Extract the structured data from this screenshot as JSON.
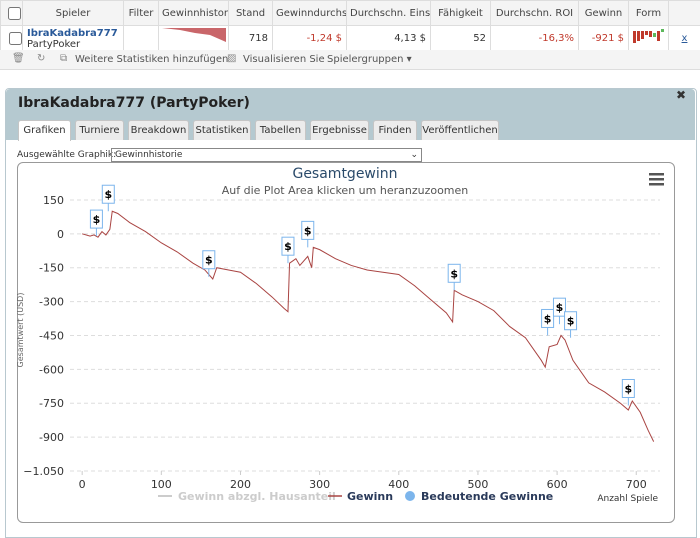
{
  "table": {
    "headers": [
      "Spieler",
      "Filter",
      "Gewinnhistori",
      "Stand",
      "Gewinndurchsc",
      "Durchschn. Eins",
      "Fähigkeit",
      "Durchschn. ROI",
      "Gewinn",
      "Form"
    ],
    "rows": [
      [
        "IbraKadabra777",
        "PartyPoker",
        "718",
        "-1,24 $",
        "4,13 $",
        "52",
        "-16,3%",
        "-921 $",
        "x"
      ]
    ]
  },
  "toolbar": [
    "Weitere Statistiken hinzufügen",
    "Visualisieren Sie",
    "Spielergruppen"
  ],
  "panel": {
    "title": "IbraKadabra777 (PartyPoker)",
    "tabs": [
      "Grafiken",
      "Turniere",
      "Breakdown",
      "Statistiken",
      "Tabellen",
      "Ergebnisse",
      "Finden",
      "Veröffentlichen"
    ],
    "select_label": "Ausgewählte Graphik:",
    "select_value": "Gewinnhistorie"
  },
  "chart_data": {
    "type": "line",
    "title": "Gesamtgewinn",
    "subtitle": "Auf die Plot Area klicken um heranzuzoomen",
    "x_label": "Anzahl Spiele",
    "y_label": "Gesamtwert (USD)",
    "xlim": [
      -28,
      730
    ],
    "xticks": [
      0,
      100,
      200,
      300,
      400,
      500,
      600,
      700
    ],
    "ylim": [
      -1050,
      194
    ],
    "yticks": [
      150,
      0,
      -150,
      -300,
      -450,
      -600,
      -750,
      -900,
      {
        "value": -1050,
        "label": "−1.050"
      }
    ],
    "grid": true,
    "series": [
      {
        "name": "Gewinn",
        "color": "#a94442",
        "x": [
          0,
          10,
          15,
          20,
          25,
          30,
          35,
          38,
          45,
          60,
          80,
          100,
          120,
          140,
          155,
          165,
          170,
          185,
          200,
          220,
          240,
          255,
          260,
          262,
          270,
          275,
          285,
          290,
          292,
          300,
          320,
          340,
          360,
          380,
          400,
          420,
          440,
          460,
          468,
          470,
          480,
          500,
          520,
          540,
          560,
          580,
          585,
          590,
          600,
          605,
          610,
          620,
          640,
          660,
          680,
          690,
          695,
          705,
          715,
          722
        ],
        "values": [
          0,
          -10,
          -5,
          -15,
          10,
          -5,
          20,
          100,
          90,
          50,
          10,
          -40,
          -80,
          -130,
          -160,
          -200,
          -150,
          -160,
          -170,
          -220,
          -280,
          -330,
          -345,
          -130,
          -110,
          -140,
          -100,
          -150,
          -60,
          -70,
          -110,
          -140,
          -160,
          -170,
          -180,
          -230,
          -290,
          -350,
          -390,
          -250,
          -270,
          -300,
          -340,
          -410,
          -460,
          -560,
          -590,
          -500,
          -490,
          -450,
          -470,
          -560,
          -660,
          -700,
          -750,
          -780,
          -740,
          -790,
          -870,
          -920
        ]
      },
      {
        "name": "Bedeutende Gewinne",
        "color": "#7cb5ec",
        "label": "$",
        "x": [
          18,
          33,
          160,
          260,
          285,
          470,
          588,
          603,
          617,
          690
        ],
        "values": [
          -10,
          100,
          -190,
          -130,
          -60,
          -250,
          -450,
          -400,
          -460,
          -760
        ]
      }
    ],
    "hidden_series": [
      {
        "name": "Gewinn abzgl. Hausanteil",
        "color": "#cccccc"
      }
    ]
  }
}
